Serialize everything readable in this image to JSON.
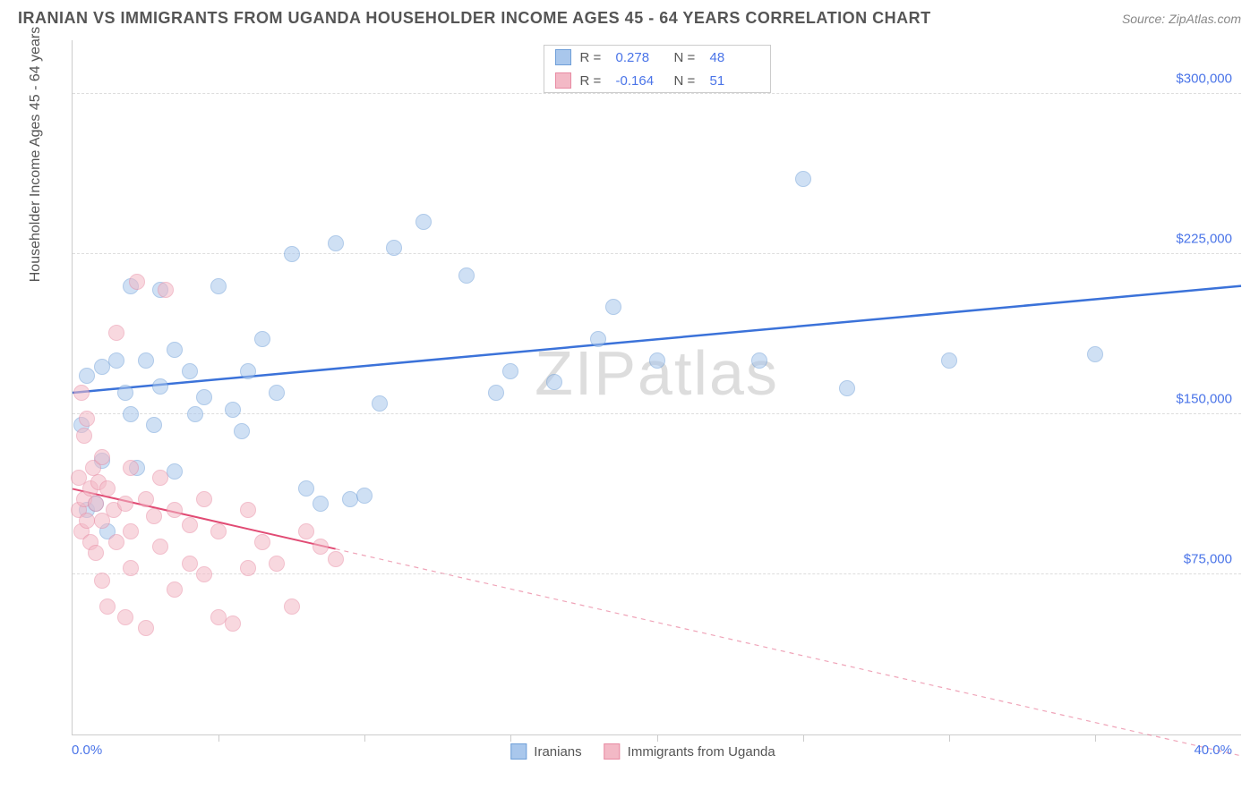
{
  "title": "IRANIAN VS IMMIGRANTS FROM UGANDA HOUSEHOLDER INCOME AGES 45 - 64 YEARS CORRELATION CHART",
  "source_label": "Source: ",
  "source_name": "ZipAtlas.com",
  "watermark": "ZIPatlas",
  "y_axis_title": "Householder Income Ages 45 - 64 years",
  "chart": {
    "type": "scatter",
    "xlim": [
      0,
      40
    ],
    "ylim": [
      0,
      325000
    ],
    "x_min_label": "0.0%",
    "x_max_label": "40.0%",
    "y_ticks": [
      75000,
      150000,
      225000,
      300000
    ],
    "y_tick_labels": [
      "$75,000",
      "$150,000",
      "$225,000",
      "$300,000"
    ],
    "x_tick_positions": [
      5,
      10,
      15,
      20,
      25,
      30,
      35
    ],
    "grid_color": "#dddddd",
    "axis_color": "#cccccc",
    "background_color": "#ffffff",
    "marker_radius": 9,
    "marker_opacity": 0.55,
    "series": [
      {
        "name": "Iranians",
        "color_fill": "#a9c7ec",
        "color_stroke": "#6f9fd8",
        "R": "0.278",
        "N": "48",
        "trend": {
          "x1": 0,
          "y1": 160000,
          "x2": 40,
          "y2": 210000,
          "solid_until_x": 40,
          "color": "#3b72d9",
          "width": 2.5
        },
        "points": [
          [
            0.3,
            145000
          ],
          [
            0.5,
            168000
          ],
          [
            0.5,
            105000
          ],
          [
            0.8,
            108000
          ],
          [
            1.0,
            172000
          ],
          [
            1.0,
            128000
          ],
          [
            1.2,
            95000
          ],
          [
            1.5,
            175000
          ],
          [
            1.8,
            160000
          ],
          [
            2.0,
            210000
          ],
          [
            2.0,
            150000
          ],
          [
            2.2,
            125000
          ],
          [
            2.5,
            175000
          ],
          [
            2.8,
            145000
          ],
          [
            3.0,
            208000
          ],
          [
            3.0,
            163000
          ],
          [
            3.5,
            180000
          ],
          [
            3.5,
            123000
          ],
          [
            4.0,
            170000
          ],
          [
            4.2,
            150000
          ],
          [
            4.5,
            158000
          ],
          [
            5.0,
            210000
          ],
          [
            5.5,
            152000
          ],
          [
            5.8,
            142000
          ],
          [
            6.0,
            170000
          ],
          [
            6.5,
            185000
          ],
          [
            7.0,
            160000
          ],
          [
            7.5,
            225000
          ],
          [
            8.0,
            115000
          ],
          [
            8.5,
            108000
          ],
          [
            9.0,
            230000
          ],
          [
            9.5,
            110000
          ],
          [
            10.0,
            112000
          ],
          [
            10.5,
            155000
          ],
          [
            11.0,
            228000
          ],
          [
            12.0,
            240000
          ],
          [
            13.5,
            215000
          ],
          [
            14.5,
            160000
          ],
          [
            15.0,
            170000
          ],
          [
            16.5,
            165000
          ],
          [
            18.0,
            185000
          ],
          [
            18.5,
            200000
          ],
          [
            20.0,
            175000
          ],
          [
            23.5,
            175000
          ],
          [
            25.0,
            260000
          ],
          [
            26.5,
            162000
          ],
          [
            30.0,
            175000
          ],
          [
            35.0,
            178000
          ]
        ]
      },
      {
        "name": "Immigrants from Uganda",
        "color_fill": "#f3b9c6",
        "color_stroke": "#e88ba3",
        "R": "-0.164",
        "N": "51",
        "trend": {
          "x1": 0,
          "y1": 115000,
          "x2": 40,
          "y2": -10000,
          "solid_until_x": 9,
          "color": "#e14b74",
          "width": 2
        },
        "points": [
          [
            0.2,
            120000
          ],
          [
            0.2,
            105000
          ],
          [
            0.3,
            160000
          ],
          [
            0.3,
            95000
          ],
          [
            0.4,
            140000
          ],
          [
            0.4,
            110000
          ],
          [
            0.5,
            148000
          ],
          [
            0.5,
            100000
          ],
          [
            0.6,
            115000
          ],
          [
            0.6,
            90000
          ],
          [
            0.7,
            125000
          ],
          [
            0.8,
            108000
          ],
          [
            0.8,
            85000
          ],
          [
            0.9,
            118000
          ],
          [
            1.0,
            130000
          ],
          [
            1.0,
            100000
          ],
          [
            1.0,
            72000
          ],
          [
            1.2,
            115000
          ],
          [
            1.2,
            60000
          ],
          [
            1.4,
            105000
          ],
          [
            1.5,
            188000
          ],
          [
            1.5,
            90000
          ],
          [
            1.8,
            108000
          ],
          [
            1.8,
            55000
          ],
          [
            2.0,
            125000
          ],
          [
            2.0,
            95000
          ],
          [
            2.0,
            78000
          ],
          [
            2.2,
            212000
          ],
          [
            2.5,
            110000
          ],
          [
            2.5,
            50000
          ],
          [
            2.8,
            102000
          ],
          [
            3.0,
            120000
          ],
          [
            3.0,
            88000
          ],
          [
            3.2,
            208000
          ],
          [
            3.5,
            105000
          ],
          [
            3.5,
            68000
          ],
          [
            4.0,
            98000
          ],
          [
            4.0,
            80000
          ],
          [
            4.5,
            110000
          ],
          [
            4.5,
            75000
          ],
          [
            5.0,
            95000
          ],
          [
            5.0,
            55000
          ],
          [
            5.5,
            52000
          ],
          [
            6.0,
            105000
          ],
          [
            6.0,
            78000
          ],
          [
            6.5,
            90000
          ],
          [
            7.0,
            80000
          ],
          [
            7.5,
            60000
          ],
          [
            8.0,
            95000
          ],
          [
            8.5,
            88000
          ],
          [
            9.0,
            82000
          ]
        ]
      }
    ]
  },
  "legend_top": {
    "r_label": "R =",
    "n_label": "N ="
  },
  "colors": {
    "title": "#555555",
    "source": "#888888",
    "tick_label": "#4a74e8",
    "axis_title": "#555555"
  }
}
